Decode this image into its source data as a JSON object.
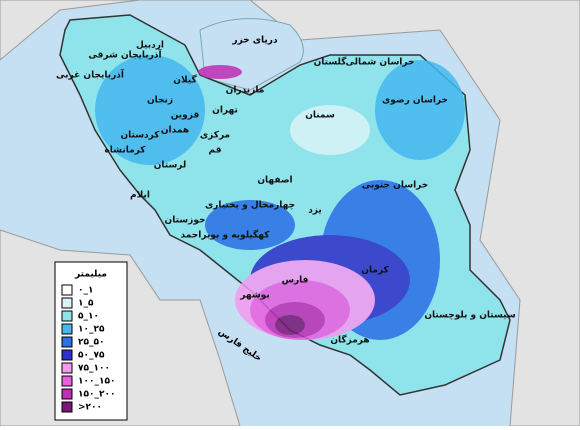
{
  "map": {
    "sea_labels": [
      "دریای خزر",
      "خلیج فارس"
    ],
    "provinces": [
      "اردبیل",
      "آذربایجان شرقی",
      "آذربایجان غربی",
      "گیلان",
      "مازندران",
      "گلستان",
      "خراسان شمالی",
      "خراسان رضوی",
      "زنجان",
      "قزوین",
      "تهران",
      "سمنان",
      "کردستان",
      "همدان",
      "کرمانشاه",
      "مرکزی",
      "قم",
      "لرستان",
      "ایلام",
      "اصفهان",
      "خراسان جنوبی",
      "چهارمحال و بختیاری",
      "خوزستان",
      "یزد",
      "کهگیلویه و بویراحمد",
      "کرمان",
      "فارس",
      "بوشهر",
      "هرمزگان",
      "سیستان و بلوچستان"
    ],
    "legend": {
      "title": "میلیمتر",
      "items": [
        {
          "label": "۰_۱",
          "color": "#ffffff"
        },
        {
          "label": "۱_۵",
          "color": "#d8f4f6"
        },
        {
          "label": "۵_۱۰",
          "color": "#8fe3ea"
        },
        {
          "label": "۱۰_۲۵",
          "color": "#45b8f0"
        },
        {
          "label": "۲۵_۵۰",
          "color": "#2a6fe6"
        },
        {
          "label": "۵۰_۷۵",
          "color": "#2f2fc9"
        },
        {
          "label": "۷۵_۱۰۰",
          "color": "#f49af0"
        },
        {
          "label": "۱۰۰_۱۵۰",
          "color": "#ea5ee0"
        },
        {
          "label": "۱۵۰_۲۰۰",
          "color": "#c02cb4"
        },
        {
          "label": ">۲۰۰",
          "color": "#7a1676"
        }
      ]
    }
  }
}
